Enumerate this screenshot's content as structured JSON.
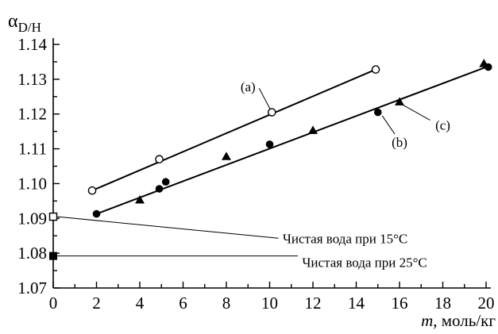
{
  "chart_data": {
    "type": "scatter",
    "ylabel_symbol": "α",
    "ylabel_sub": "D/H",
    "xlabel_var": "m",
    "xlabel_unit": ", моль/кг",
    "xlim": [
      0,
      20
    ],
    "ylim": [
      1.07,
      1.14
    ],
    "x_ticks": [
      0,
      2,
      4,
      6,
      8,
      10,
      12,
      14,
      16,
      18,
      20
    ],
    "y_ticks": [
      1.07,
      1.08,
      1.09,
      1.1,
      1.11,
      1.12,
      1.13,
      1.14
    ],
    "y_tick_labels": [
      "1.07",
      "1.08",
      "1.09",
      "1.10",
      "1.11",
      "1.12",
      "1.13",
      "1.14"
    ],
    "series": [
      {
        "name": "(a)",
        "marker": "circle-open",
        "points": [
          [
            1.8,
            1.098
          ],
          [
            4.9,
            1.107
          ],
          [
            10.1,
            1.1205
          ],
          [
            14.9,
            1.1328
          ]
        ],
        "fit": [
          [
            1.8,
            1.098
          ],
          [
            14.9,
            1.1328
          ]
        ],
        "label_pos": [
          9.0,
          1.1265
        ],
        "label_anchor": [
          10.1,
          1.1205
        ]
      },
      {
        "name": "(b)",
        "marker": "circle-filled",
        "points": [
          [
            2.0,
            1.0913
          ],
          [
            4.9,
            1.0985
          ],
          [
            5.2,
            1.1005
          ],
          [
            10.0,
            1.1113
          ],
          [
            15.0,
            1.1205
          ],
          [
            20.1,
            1.1335
          ]
        ],
        "fit": [
          [
            2.0,
            1.0913
          ],
          [
            20.0,
            1.1335
          ]
        ],
        "label_pos": [
          16.0,
          1.1106
        ],
        "label_anchor": [
          15.2,
          1.1195
        ]
      },
      {
        "name": "(c)",
        "marker": "triangle-filled",
        "points": [
          [
            4.0,
            1.0953
          ],
          [
            8.0,
            1.1078
          ],
          [
            12.0,
            1.1153
          ],
          [
            16.0,
            1.1235
          ],
          [
            19.9,
            1.1345
          ]
        ],
        "label_pos": [
          18.0,
          1.1155
        ],
        "label_anchor": [
          16.1,
          1.1228
        ]
      }
    ],
    "references": [
      {
        "label": "Чистая вода при 15°C",
        "marker": "square-open",
        "x": 0,
        "y": 1.0905,
        "label_pos": [
          10.6,
          1.0843
        ],
        "line_end": [
          10.4,
          1.0843
        ]
      },
      {
        "label": "Чистая вода при 25°C",
        "marker": "square-filled",
        "x": 0,
        "y": 1.0792,
        "label_pos": [
          11.5,
          1.0774
        ],
        "line_end": [
          11.3,
          1.0792
        ]
      }
    ]
  }
}
